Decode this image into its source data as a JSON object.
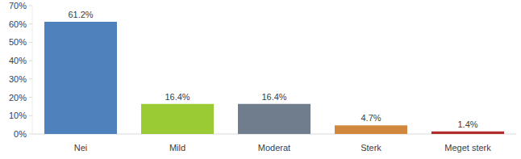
{
  "chart_data": {
    "type": "bar",
    "categories": [
      "Nei",
      "Mild",
      "Moderat",
      "Sterk",
      "Meget sterk"
    ],
    "values": [
      61.2,
      16.4,
      16.4,
      4.7,
      1.4
    ],
    "value_labels": [
      "61.2%",
      "16.4%",
      "16.4%",
      "4.7%",
      "1.4%"
    ],
    "colors": [
      "#4f81bd",
      "#9bcb34",
      "#6f7d8c",
      "#d2873f",
      "#b22e2e"
    ],
    "ylim": [
      0,
      70
    ],
    "yticks": [
      {
        "value": 0,
        "label": "0%"
      },
      {
        "value": 10,
        "label": "10%"
      },
      {
        "value": 20,
        "label": "20%"
      },
      {
        "value": 30,
        "label": "30%"
      },
      {
        "value": 40,
        "label": "40%"
      },
      {
        "value": 50,
        "label": "50%"
      },
      {
        "value": 60,
        "label": "60%"
      },
      {
        "value": 70,
        "label": "70%"
      }
    ],
    "grid": false,
    "data_labels": true
  }
}
